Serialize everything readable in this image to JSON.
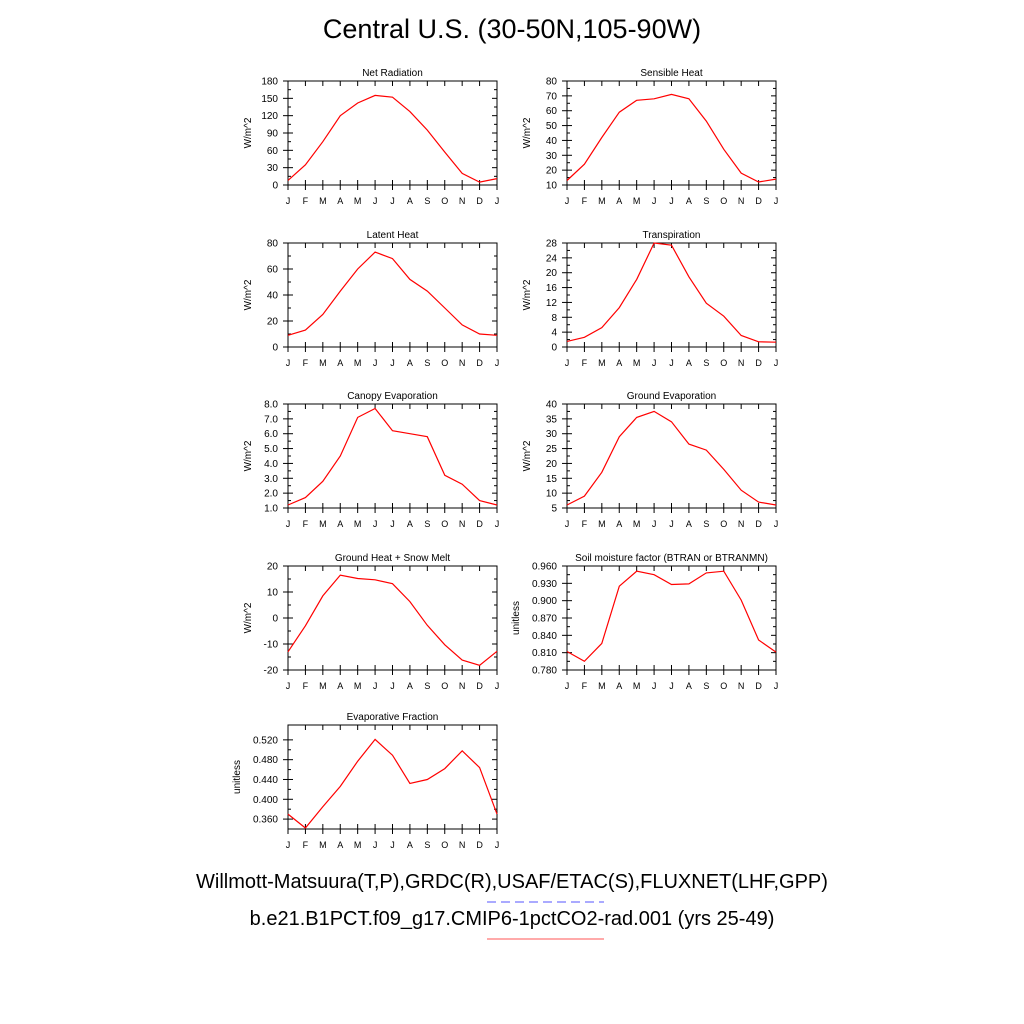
{
  "page": {
    "title": "Central U.S. (30-50N,105-90W)"
  },
  "footer": {
    "line1": "Willmott-Matsuura(T,P),GRDC(R),USAF/ETAC(S),FLUXNET(LHF,GPP)",
    "line2": "b.e21.B1PCT.f09_g17.CMIP6-1pctCO2-rad.001 (yrs 25-49)",
    "line1_underline_color": "#5555ff",
    "line2_underline_color": "#ff5555"
  },
  "chart_data": [
    {
      "type": "line",
      "title": "Net Radiation",
      "ylabel": "W/m^2",
      "categories": [
        "J",
        "F",
        "M",
        "A",
        "M",
        "J",
        "J",
        "A",
        "S",
        "O",
        "N",
        "D",
        "J"
      ],
      "ylim": [
        0,
        180
      ],
      "yticks": [
        "0",
        "30",
        "60",
        "90",
        "120",
        "150",
        "180"
      ],
      "ytick_values": [
        0,
        30,
        60,
        90,
        120,
        150,
        180
      ],
      "values": [
        8,
        35,
        75,
        120,
        142,
        155,
        152,
        127,
        95,
        57,
        20,
        5,
        11
      ],
      "color": "#ff0000"
    },
    {
      "type": "line",
      "title": "Sensible Heat",
      "ylabel": "W/m^2",
      "categories": [
        "J",
        "F",
        "M",
        "A",
        "M",
        "J",
        "J",
        "A",
        "S",
        "O",
        "N",
        "D",
        "J"
      ],
      "ylim": [
        10,
        80
      ],
      "yticks": [
        "10",
        "20",
        "30",
        "40",
        "50",
        "60",
        "70",
        "80"
      ],
      "ytick_values": [
        10,
        20,
        30,
        40,
        50,
        60,
        70,
        80
      ],
      "values": [
        13,
        24,
        42,
        59,
        67,
        68,
        71,
        68,
        53,
        34,
        18,
        12,
        14
      ],
      "color": "#ff0000"
    },
    {
      "type": "line",
      "title": "Latent Heat",
      "ylabel": "W/m^2",
      "categories": [
        "J",
        "F",
        "M",
        "A",
        "M",
        "J",
        "J",
        "A",
        "S",
        "O",
        "N",
        "D",
        "J"
      ],
      "ylim": [
        0,
        80
      ],
      "yticks": [
        "0",
        "20",
        "40",
        "60",
        "80"
      ],
      "ytick_values": [
        0,
        20,
        40,
        60,
        80
      ],
      "values": [
        9,
        13,
        25,
        43,
        60,
        73,
        68,
        52,
        43,
        30,
        17,
        10,
        9
      ],
      "color": "#ff0000"
    },
    {
      "type": "line",
      "title": "Transpiration",
      "ylabel": "W/m^2",
      "categories": [
        "J",
        "F",
        "M",
        "A",
        "M",
        "J",
        "J",
        "A",
        "S",
        "O",
        "N",
        "D",
        "J"
      ],
      "ylim": [
        0,
        28
      ],
      "yticks": [
        "0",
        "4",
        "8",
        "12",
        "16",
        "20",
        "24",
        "28"
      ],
      "ytick_values": [
        0,
        4,
        8,
        12,
        16,
        20,
        24,
        28
      ],
      "values": [
        1.5,
        2.6,
        5.2,
        10.6,
        18.2,
        28,
        27.4,
        18.9,
        11.8,
        8.3,
        3.1,
        1.4,
        1.3
      ],
      "color": "#ff0000"
    },
    {
      "type": "line",
      "title": "Canopy Evaporation",
      "ylabel": "W/m^2",
      "categories": [
        "J",
        "F",
        "M",
        "A",
        "M",
        "J",
        "J",
        "A",
        "S",
        "O",
        "N",
        "D",
        "J"
      ],
      "ylim": [
        1,
        8
      ],
      "yticks": [
        "1.0",
        "2.0",
        "3.0",
        "4.0",
        "5.0",
        "6.0",
        "7.0",
        "8.0"
      ],
      "ytick_values": [
        1,
        2,
        3,
        4,
        5,
        6,
        7,
        8
      ],
      "values": [
        1.2,
        1.7,
        2.8,
        4.5,
        7.1,
        7.7,
        6.2,
        6.0,
        5.8,
        3.2,
        2.6,
        1.5,
        1.2
      ],
      "color": "#ff0000"
    },
    {
      "type": "line",
      "title": "Ground Evaporation",
      "ylabel": "W/m^2",
      "categories": [
        "J",
        "F",
        "M",
        "A",
        "M",
        "J",
        "J",
        "A",
        "S",
        "O",
        "N",
        "D",
        "J"
      ],
      "ylim": [
        5,
        40
      ],
      "yticks": [
        "5",
        "10",
        "15",
        "20",
        "25",
        "30",
        "35",
        "40"
      ],
      "ytick_values": [
        5,
        10,
        15,
        20,
        25,
        30,
        35,
        40
      ],
      "values": [
        6,
        9,
        17,
        29,
        35.5,
        37.5,
        34,
        26.5,
        24.5,
        18,
        11,
        7,
        6
      ],
      "color": "#ff0000"
    },
    {
      "type": "line",
      "title": "Ground Heat + Snow Melt",
      "ylabel": "W/m^2",
      "categories": [
        "J",
        "F",
        "M",
        "A",
        "M",
        "J",
        "J",
        "A",
        "S",
        "O",
        "N",
        "D",
        "J"
      ],
      "ylim": [
        -20,
        20
      ],
      "yticks": [
        "-20",
        "-10",
        "0",
        "10",
        "20"
      ],
      "ytick_values": [
        -20,
        -10,
        0,
        10,
        20
      ],
      "values": [
        -13,
        -3,
        8.5,
        16.5,
        15.2,
        14.7,
        13.2,
        6.3,
        -2.8,
        -10.3,
        -16.2,
        -18.2,
        -12.8
      ],
      "color": "#ff0000"
    },
    {
      "type": "line",
      "title": "Soil moisture factor (BTRAN or BTRANMN)",
      "ylabel": "unitless",
      "categories": [
        "J",
        "F",
        "M",
        "A",
        "M",
        "J",
        "J",
        "A",
        "S",
        "O",
        "N",
        "D",
        "J"
      ],
      "ylim": [
        0.78,
        0.96
      ],
      "yticks": [
        "0.780",
        "0.810",
        "0.840",
        "0.870",
        "0.900",
        "0.930",
        "0.960"
      ],
      "ytick_values": [
        0.78,
        0.81,
        0.84,
        0.87,
        0.9,
        0.93,
        0.96
      ],
      "values": [
        0.812,
        0.795,
        0.826,
        0.925,
        0.951,
        0.945,
        0.928,
        0.929,
        0.948,
        0.951,
        0.901,
        0.832,
        0.811
      ],
      "color": "#ff0000"
    },
    {
      "type": "line",
      "title": "Evaporative Fraction",
      "ylabel": "unitless",
      "categories": [
        "J",
        "F",
        "M",
        "A",
        "M",
        "J",
        "J",
        "A",
        "S",
        "O",
        "N",
        "D",
        "J"
      ],
      "ylim": [
        0.34,
        0.55
      ],
      "yticks": [
        "0.360",
        "0.400",
        "0.440",
        "0.480",
        "0.520"
      ],
      "ytick_values": [
        0.36,
        0.4,
        0.44,
        0.48,
        0.52
      ],
      "values": [
        0.37,
        0.342,
        0.385,
        0.426,
        0.477,
        0.521,
        0.489,
        0.432,
        0.44,
        0.462,
        0.498,
        0.464,
        0.37
      ],
      "color": "#ff0000"
    }
  ]
}
